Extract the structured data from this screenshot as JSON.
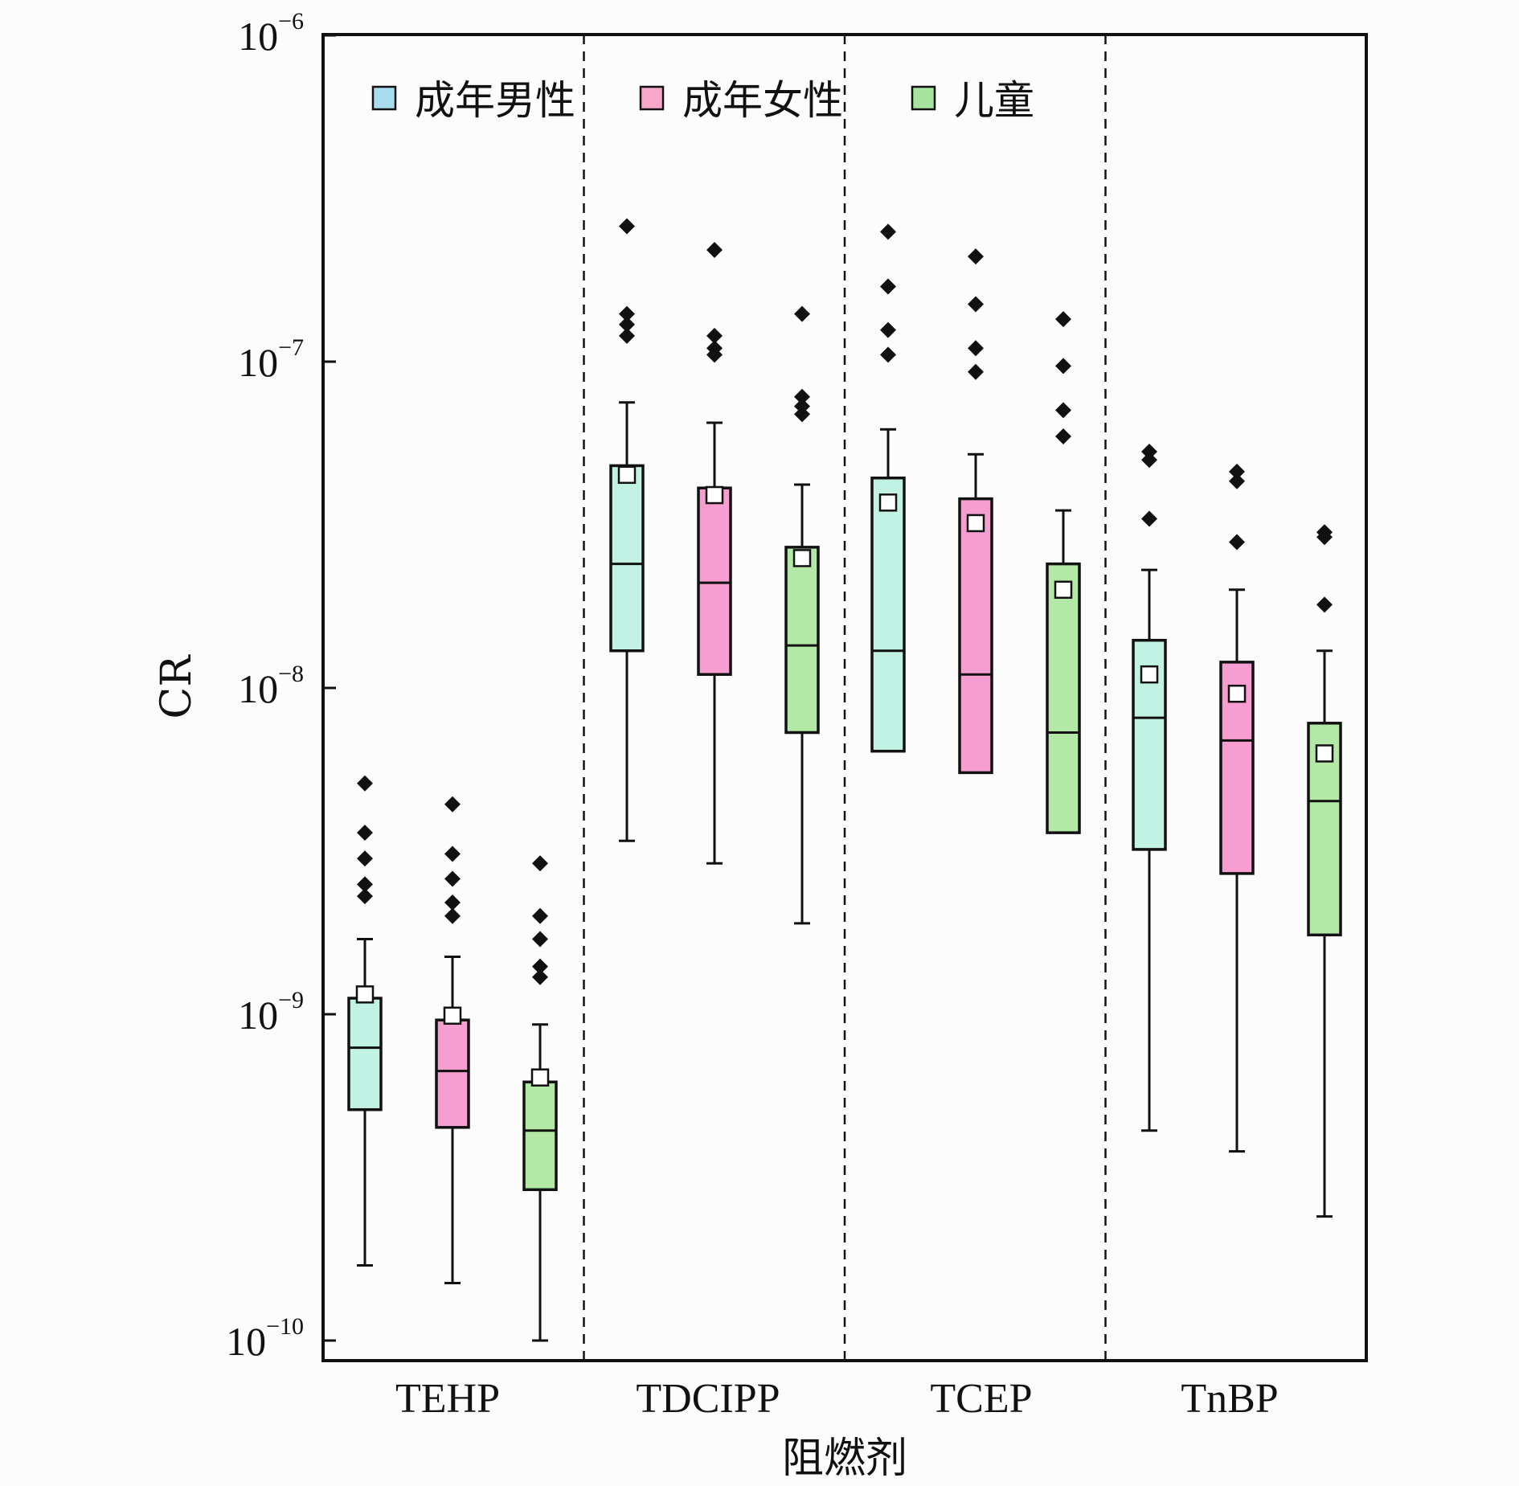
{
  "chart_data": {
    "type": "box",
    "xlabel": "阻燃剂",
    "ylabel": "CR",
    "yscale": "log",
    "ylim": [
      8e-11,
      1e-06
    ],
    "yticks": [
      {
        "mant": "10",
        "exp": "−6",
        "value": 1e-06
      },
      {
        "mant": "10",
        "exp": "−7",
        "value": 1e-07
      },
      {
        "mant": "10",
        "exp": "−8",
        "value": 1e-08
      },
      {
        "mant": "10",
        "exp": "−9",
        "value": 1e-09
      },
      {
        "mant": "10",
        "exp": "−10",
        "value": 1e-10
      }
    ],
    "categories": [
      "TEHP",
      "TDCIPP",
      "TCEP",
      "TnBP"
    ],
    "legend": {
      "position": "top-left"
    },
    "series": [
      {
        "name": "成年男性",
        "color": "#c2f2e4",
        "legend_color": "#a9dcee",
        "values": [
          {
            "whisker_low": 1.7e-10,
            "q1": 5.1e-10,
            "median": 7.9e-10,
            "q3": 1.12e-09,
            "whisker_high": 1.7e-09,
            "mean": 1.15e-09,
            "outliers": [
              5.1e-09,
              3.6e-09,
              3e-09,
              2.5e-09,
              2.3e-09
            ]
          },
          {
            "whisker_low": 3.4e-09,
            "q1": 1.3e-08,
            "median": 2.4e-08,
            "q3": 4.8e-08,
            "whisker_high": 7.5e-08,
            "mean": 4.5e-08,
            "outliers": [
              2.6e-07,
              1.4e-07,
              1.3e-07,
              1.2e-07
            ]
          },
          {
            "whisker_low": null,
            "q1": 6.4e-09,
            "median": 1.3e-08,
            "q3": 4.4e-08,
            "whisker_high": 6.2e-08,
            "mean": 3.7e-08,
            "outliers": [
              2.5e-07,
              1.7e-07,
              1.25e-07,
              1.05e-07
            ]
          },
          {
            "whisker_low": 4.4e-10,
            "q1": 3.2e-09,
            "median": 8.1e-09,
            "q3": 1.4e-08,
            "whisker_high": 2.3e-08,
            "mean": 1.1e-08,
            "outliers": [
              5.3e-08,
              5e-08,
              3.3e-08
            ]
          }
        ]
      },
      {
        "name": "成年女性",
        "color": "#f79ed0",
        "legend_color": "#f7a8c8",
        "values": [
          {
            "whisker_low": 1.5e-10,
            "q1": 4.5e-10,
            "median": 6.7e-10,
            "q3": 9.6e-10,
            "whisker_high": 1.5e-09,
            "mean": 9.9e-10,
            "outliers": [
              4.4e-09,
              3.1e-09,
              2.6e-09,
              2.2e-09,
              2e-09
            ]
          },
          {
            "whisker_low": 2.9e-09,
            "q1": 1.1e-08,
            "median": 2.1e-08,
            "q3": 4.1e-08,
            "whisker_high": 6.5e-08,
            "mean": 3.9e-08,
            "outliers": [
              2.2e-07,
              1.2e-07,
              1.1e-07,
              1.05e-07
            ]
          },
          {
            "whisker_low": null,
            "q1": 5.5e-09,
            "median": 1.1e-08,
            "q3": 3.8e-08,
            "whisker_high": 5.2e-08,
            "mean": 3.2e-08,
            "outliers": [
              2.1e-07,
              1.5e-07,
              1.1e-07,
              9.3e-08
            ]
          },
          {
            "whisker_low": 3.8e-10,
            "q1": 2.7e-09,
            "median": 6.9e-09,
            "q3": 1.2e-08,
            "whisker_high": 2e-08,
            "mean": 9.6e-09,
            "outliers": [
              4.6e-08,
              4.3e-08,
              2.8e-08
            ]
          }
        ]
      },
      {
        "name": "儿童",
        "color": "#b4e8a6",
        "legend_color": "#a6e4a0",
        "values": [
          {
            "whisker_low": 1e-10,
            "q1": 2.9e-10,
            "median": 4.4e-10,
            "q3": 6.2e-10,
            "whisker_high": 9.3e-10,
            "mean": 6.4e-10,
            "outliers": [
              2.9e-09,
              2e-09,
              1.7e-09,
              1.4e-09,
              1.3e-09
            ]
          },
          {
            "whisker_low": 1.9e-09,
            "q1": 7.3e-09,
            "median": 1.35e-08,
            "q3": 2.7e-08,
            "whisker_high": 4.2e-08,
            "mean": 2.5e-08,
            "outliers": [
              1.4e-07,
              7.8e-08,
              7.3e-08,
              6.9e-08
            ]
          },
          {
            "whisker_low": null,
            "q1": 3.6e-09,
            "median": 7.3e-09,
            "q3": 2.4e-08,
            "whisker_high": 3.5e-08,
            "mean": 2e-08,
            "outliers": [
              1.35e-07,
              9.7e-08,
              7.1e-08,
              5.9e-08
            ]
          },
          {
            "whisker_low": 2.4e-10,
            "q1": 1.75e-09,
            "median": 4.5e-09,
            "q3": 7.8e-09,
            "whisker_high": 1.3e-08,
            "mean": 6.3e-09,
            "outliers": [
              3e-08,
              2.9e-08,
              1.8e-08
            ]
          }
        ]
      }
    ]
  }
}
